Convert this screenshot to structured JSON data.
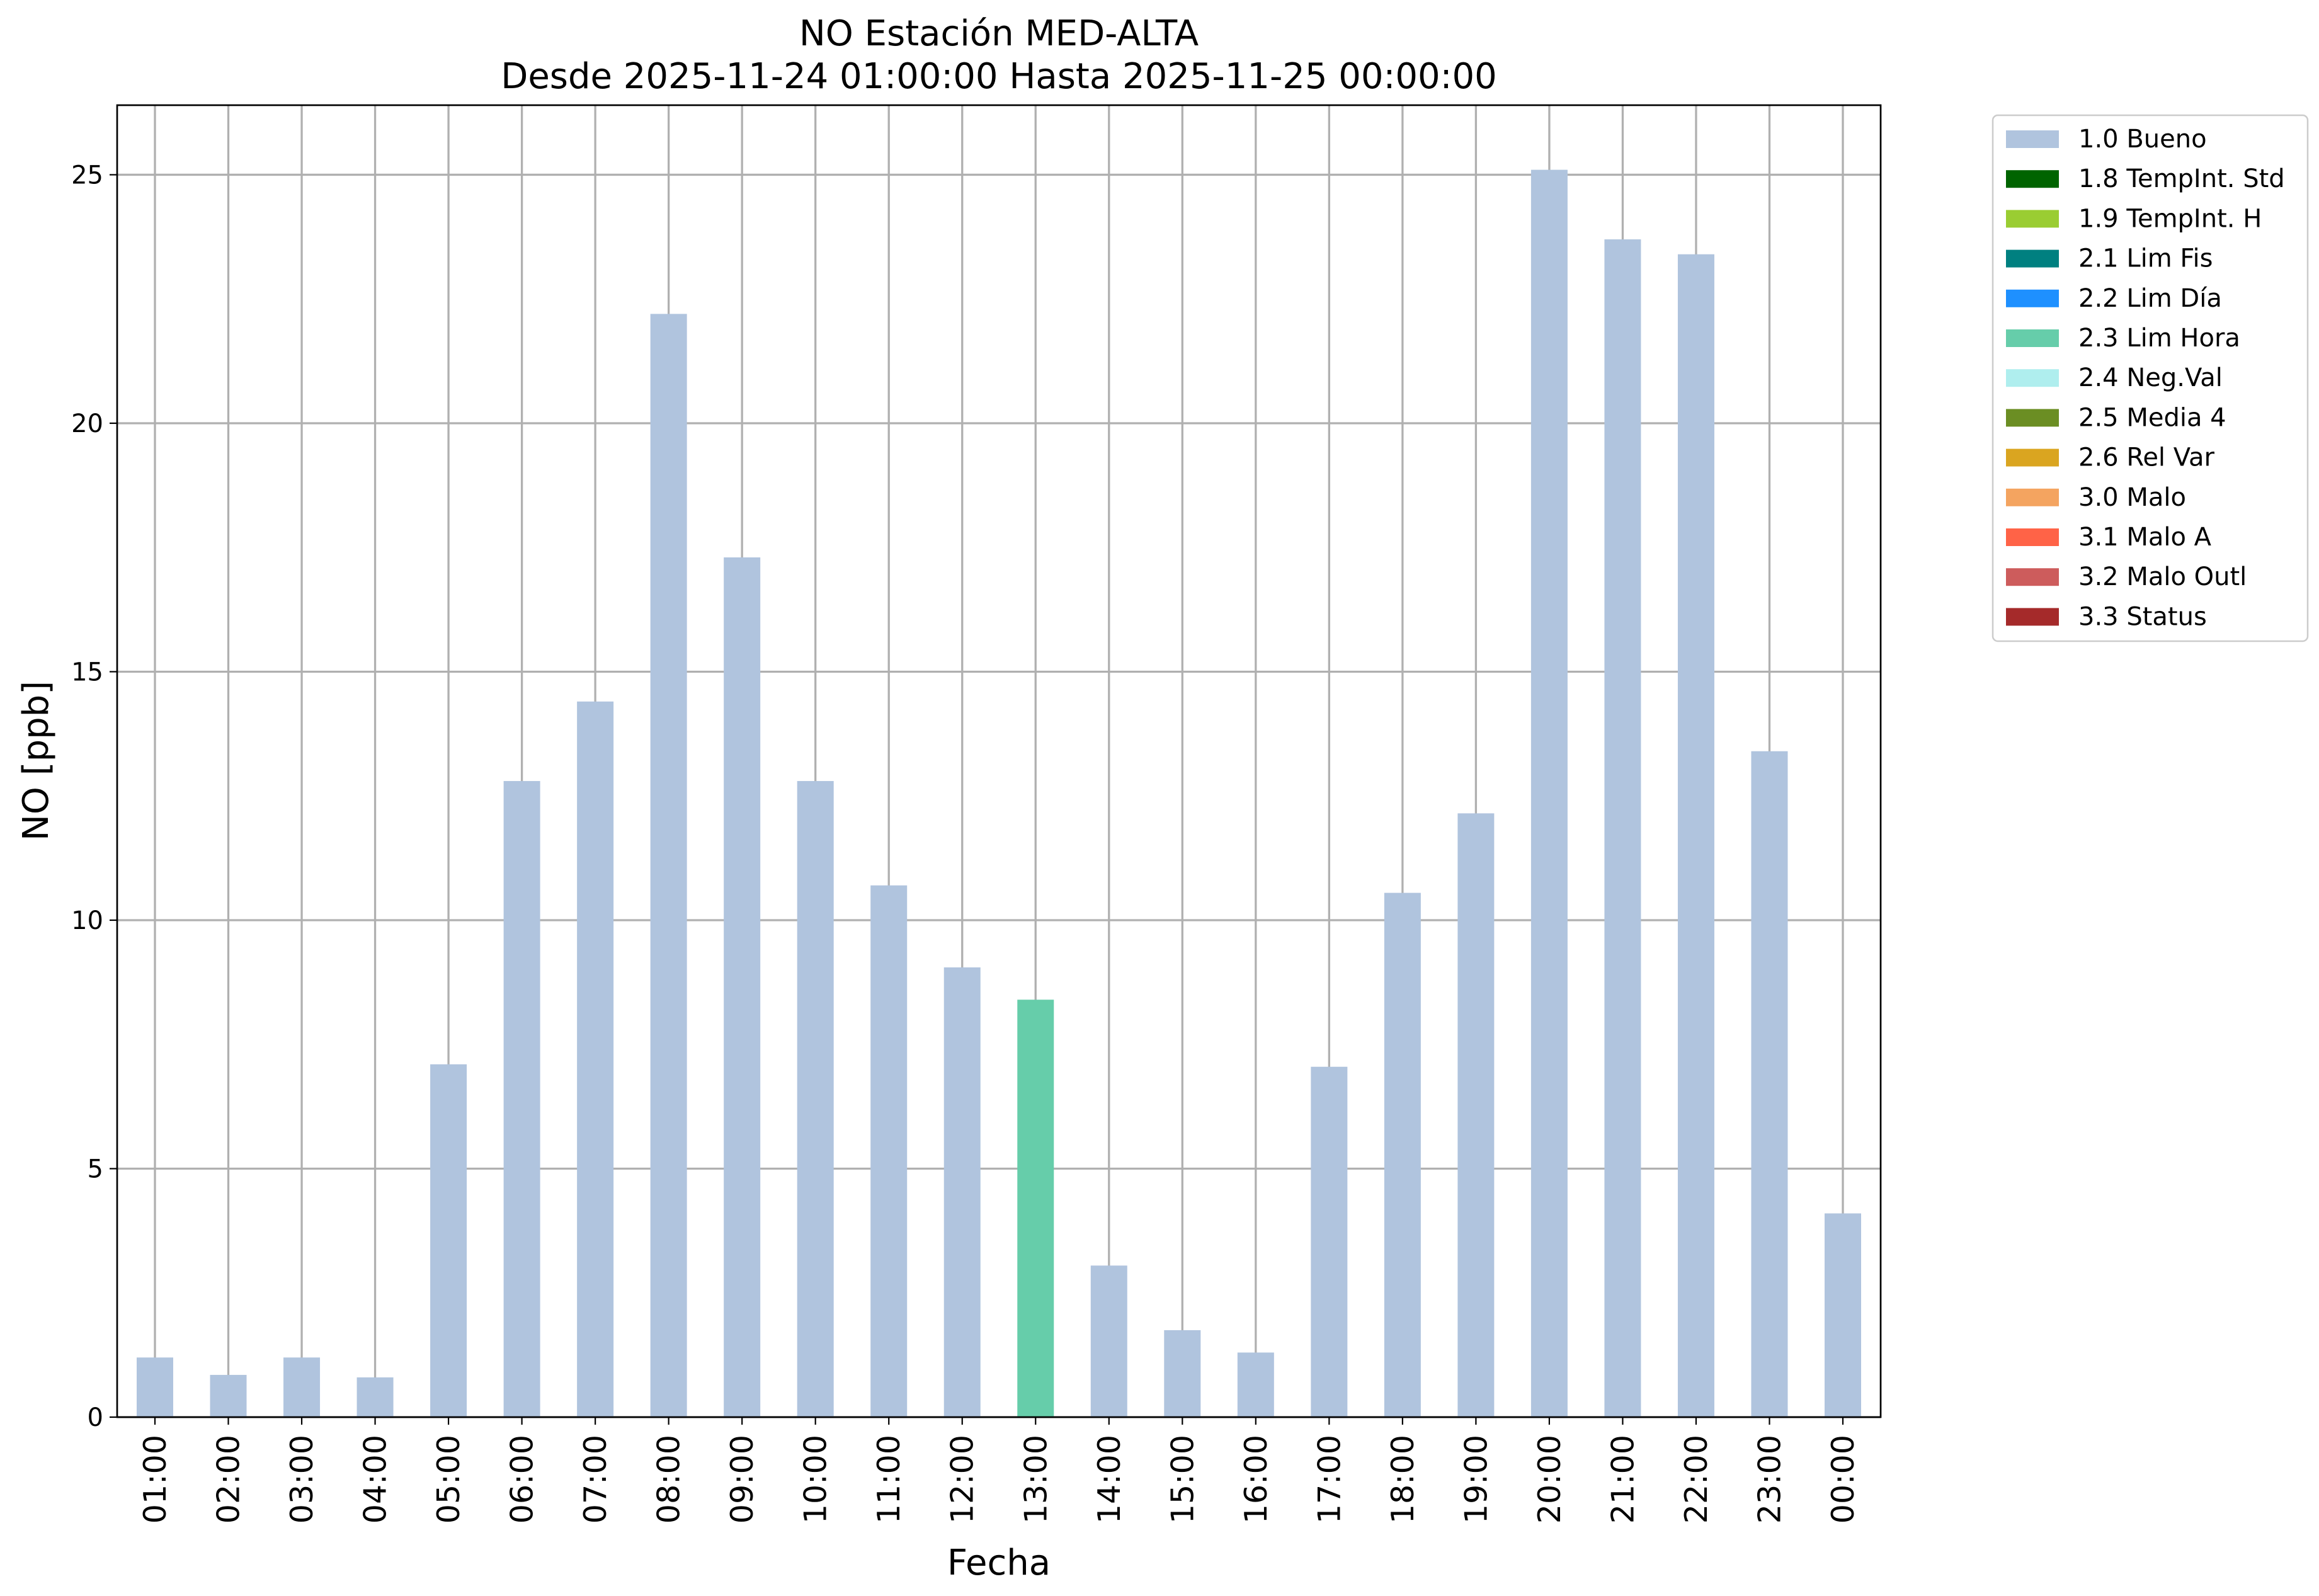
{
  "chart_data": {
    "type": "bar",
    "title": "NO Estación MED-ALTA",
    "subtitle": "Desde 2025-11-24 01:00:00 Hasta 2025-11-25 00:00:00",
    "xlabel": "Fecha",
    "ylabel": "NO [ppb]",
    "ylim": [
      0,
      26.4
    ],
    "yticks": [
      0,
      5,
      10,
      15,
      20,
      25
    ],
    "grid": true,
    "legend_position": "outside-top-right",
    "categories": [
      "01:00",
      "02:00",
      "03:00",
      "04:00",
      "05:00",
      "06:00",
      "07:00",
      "08:00",
      "09:00",
      "10:00",
      "11:00",
      "12:00",
      "13:00",
      "14:00",
      "15:00",
      "16:00",
      "17:00",
      "18:00",
      "19:00",
      "20:00",
      "21:00",
      "22:00",
      "23:00",
      "00:00"
    ],
    "values": [
      1.2,
      0.85,
      1.2,
      0.8,
      7.1,
      12.8,
      14.4,
      22.2,
      17.3,
      12.8,
      10.7,
      9.05,
      8.4,
      3.05,
      1.75,
      1.3,
      7.05,
      10.55,
      12.15,
      25.1,
      23.7,
      23.4,
      13.4,
      4.1
    ],
    "flags": [
      "1.0 Bueno",
      "1.0 Bueno",
      "1.0 Bueno",
      "1.0 Bueno",
      "1.0 Bueno",
      "1.0 Bueno",
      "1.0 Bueno",
      "1.0 Bueno",
      "1.0 Bueno",
      "1.0 Bueno",
      "1.0 Bueno",
      "1.0 Bueno",
      "2.3 Lim Hora",
      "1.0 Bueno",
      "1.0 Bueno",
      "1.0 Bueno",
      "1.0 Bueno",
      "1.0 Bueno",
      "1.0 Bueno",
      "1.0 Bueno",
      "1.0 Bueno",
      "1.0 Bueno",
      "1.0 Bueno",
      "1.0 Bueno"
    ],
    "legend": [
      {
        "label": "1.0 Bueno",
        "color": "#b0c4de"
      },
      {
        "label": "1.8 TempInt. Std",
        "color": "#006400"
      },
      {
        "label": "1.9 TempInt. H",
        "color": "#9acd32"
      },
      {
        "label": "2.1 Lim Fis",
        "color": "#008080"
      },
      {
        "label": "2.2 Lim Día",
        "color": "#1e90ff"
      },
      {
        "label": "2.3 Lim Hora",
        "color": "#66cdaa"
      },
      {
        "label": "2.4 Neg.Val",
        "color": "#afeeee"
      },
      {
        "label": "2.5 Media 4",
        "color": "#6b8e23"
      },
      {
        "label": "2.6 Rel Var",
        "color": "#daa520"
      },
      {
        "label": "3.0 Malo",
        "color": "#f4a460"
      },
      {
        "label": "3.1 Malo A",
        "color": "#ff6347"
      },
      {
        "label": "3.2 Malo Outl",
        "color": "#cd5c5c"
      },
      {
        "label": "3.3 Status",
        "color": "#a52a2a"
      }
    ]
  }
}
